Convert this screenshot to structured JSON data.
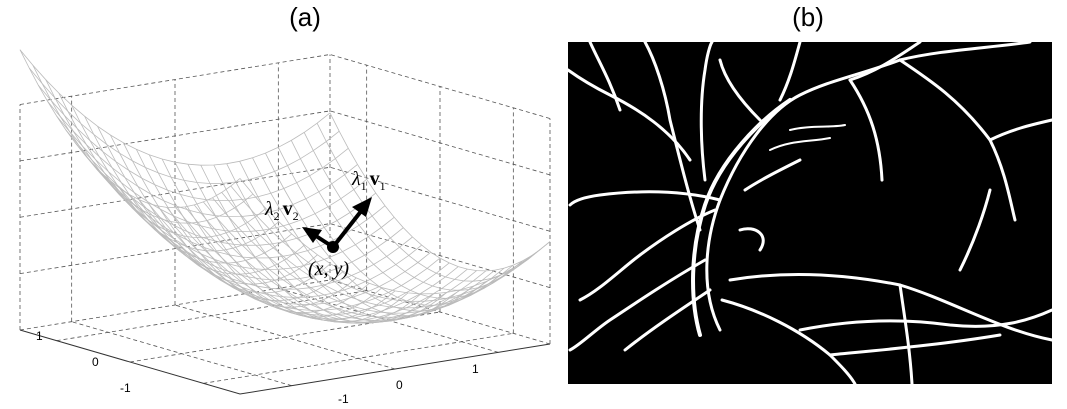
{
  "panels": [
    {
      "label": "(a)",
      "annotations": [
        {
          "parts": [
            "λ",
            "1",
            "v",
            "1"
          ]
        },
        {
          "parts": [
            "λ",
            "2",
            "v",
            "2"
          ]
        },
        {
          "parts": [
            "(x, y)"
          ]
        }
      ],
      "axis_ticks": {
        "left": [
          "1",
          "0",
          "-1"
        ],
        "bottom": [
          "-1",
          "0",
          "1"
        ]
      }
    },
    {
      "label": "(b)"
    }
  ]
}
